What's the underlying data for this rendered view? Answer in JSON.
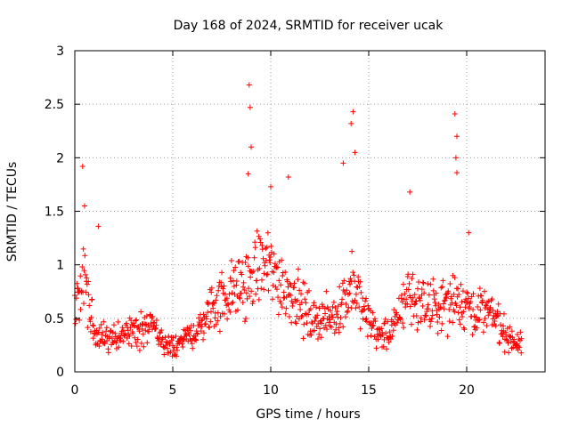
{
  "chart_data": {
    "type": "scatter",
    "title": "Day 168 of 2024, SRMTID for receiver ucak",
    "xlabel": "GPS time / hours",
    "ylabel": "SRMTID / TECUs",
    "xlim": [
      0,
      24
    ],
    "ylim": [
      0,
      3
    ],
    "xticks": [
      0,
      5,
      10,
      15,
      20
    ],
    "xtick_labels": [
      "0",
      "5",
      "10",
      "15",
      "20"
    ],
    "yticks": [
      0,
      0.5,
      1,
      1.5,
      2,
      2.5,
      3
    ],
    "ytick_labels": [
      "0",
      "0.5",
      "1",
      "1.5",
      "2",
      "2.5",
      "3"
    ],
    "grid": true,
    "marker": "+",
    "color": "#ff0000",
    "series": [
      {
        "name": "SRMTID",
        "x_range": [
          0,
          22.8
        ],
        "envelope_hours": [
          0,
          0.5,
          1,
          2,
          3,
          4,
          4.6,
          5,
          5.5,
          6,
          6.5,
          7,
          7.5,
          8,
          8.5,
          8.9,
          9.5,
          10,
          10.5,
          11,
          11.5,
          12,
          12.5,
          13,
          13.5,
          14.2,
          14.8,
          15.5,
          16,
          16.5,
          17,
          17.5,
          18,
          18.5,
          19,
          19.4,
          19.8,
          20.3,
          21,
          21.5,
          22,
          22.8
        ],
        "envelope_mean": [
          0.8,
          0.85,
          0.35,
          0.3,
          0.4,
          0.4,
          0.25,
          0.25,
          0.3,
          0.35,
          0.45,
          0.6,
          0.7,
          0.75,
          0.8,
          0.85,
          1.0,
          0.95,
          0.85,
          0.75,
          0.65,
          0.5,
          0.5,
          0.5,
          0.6,
          0.8,
          0.55,
          0.35,
          0.35,
          0.5,
          0.75,
          0.65,
          0.6,
          0.6,
          0.65,
          0.7,
          0.65,
          0.6,
          0.55,
          0.5,
          0.35,
          0.25
        ],
        "highlights": [
          {
            "x": 0.4,
            "y": 1.92
          },
          {
            "x": 0.5,
            "y": 1.55
          },
          {
            "x": 1.2,
            "y": 1.36
          },
          {
            "x": 8.9,
            "y": 2.68
          },
          {
            "x": 8.95,
            "y": 2.47
          },
          {
            "x": 9.0,
            "y": 2.1
          },
          {
            "x": 8.85,
            "y": 1.85
          },
          {
            "x": 10.0,
            "y": 1.73
          },
          {
            "x": 10.9,
            "y": 1.82
          },
          {
            "x": 14.2,
            "y": 2.43
          },
          {
            "x": 14.1,
            "y": 2.32
          },
          {
            "x": 14.3,
            "y": 2.05
          },
          {
            "x": 13.7,
            "y": 1.95
          },
          {
            "x": 17.1,
            "y": 1.68
          },
          {
            "x": 19.4,
            "y": 2.41
          },
          {
            "x": 19.5,
            "y": 2.2
          },
          {
            "x": 19.45,
            "y": 2.0
          },
          {
            "x": 19.5,
            "y": 1.86
          },
          {
            "x": 20.1,
            "y": 1.3
          }
        ]
      }
    ]
  }
}
